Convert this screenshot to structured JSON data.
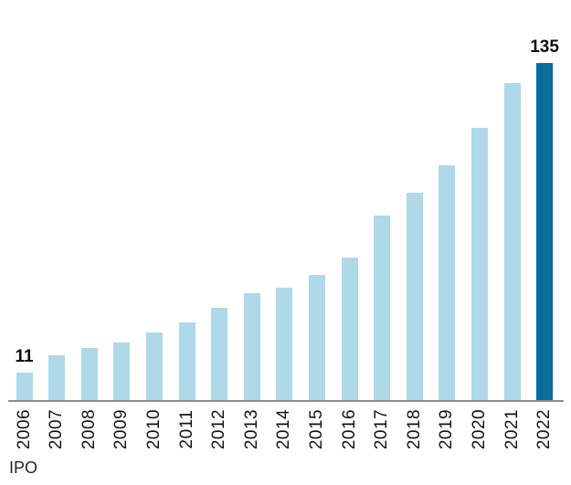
{
  "chart_data": {
    "type": "bar",
    "title": "",
    "xlabel": "IPO",
    "ylabel": "",
    "categories": [
      "2006",
      "2007",
      "2008",
      "2009",
      "2010",
      "2011",
      "2012",
      "2013",
      "2014",
      "2015",
      "2016",
      "2017",
      "2018",
      "2019",
      "2020",
      "2021",
      "2022"
    ],
    "values": [
      11,
      18,
      21,
      23,
      27,
      31,
      37,
      43,
      45,
      50,
      57,
      74,
      83,
      94,
      109,
      127,
      135
    ],
    "value_labels": [
      {
        "index": 0,
        "text": "11"
      },
      {
        "index": 16,
        "text": "135"
      }
    ],
    "highlight_category": "2022",
    "ylim": [
      0,
      145
    ],
    "grid": false,
    "legend": null,
    "colors": {
      "bar": "#AFD8E9",
      "highlight_bar": "#0A6D9C",
      "axis_line": "#8C8C8C",
      "label_text": "#0D0D0D"
    }
  }
}
